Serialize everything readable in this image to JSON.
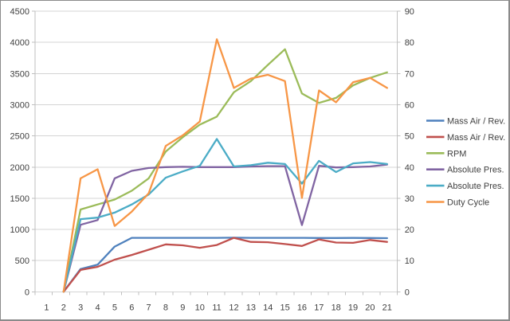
{
  "chart_data": {
    "type": "line",
    "title": "",
    "x_categories": [
      "1",
      "2",
      "3",
      "4",
      "5",
      "6",
      "7",
      "8",
      "9",
      "10",
      "11",
      "12",
      "13",
      "14",
      "15",
      "16",
      "17",
      "18",
      "19",
      "20",
      "21"
    ],
    "left_axis": {
      "min": 0,
      "max": 4500,
      "step": 500,
      "tick_labels": [
        "0",
        "500",
        "1000",
        "1500",
        "2000",
        "2500",
        "3000",
        "3500",
        "4000",
        "4500"
      ]
    },
    "right_axis": {
      "min": 0,
      "max": 90,
      "step": 10,
      "tick_labels": [
        "0",
        "10",
        "20",
        "30",
        "40",
        "50",
        "60",
        "70",
        "80",
        "90"
      ]
    },
    "grid": true,
    "legend_position": "right",
    "series": [
      {
        "id": "mass-air-rev-1",
        "name": "Mass Air / Rev.",
        "color": "#4F81BD",
        "axis": "left",
        "values": [
          null,
          0,
          365,
          435,
          725,
          865,
          865,
          865,
          865,
          865,
          865,
          868,
          865,
          865,
          865,
          865,
          862,
          862,
          864,
          863,
          860
        ]
      },
      {
        "id": "mass-air-rev-2",
        "name": "Mass Air / Rev.",
        "color": "#C0504D",
        "axis": "left",
        "values": [
          null,
          0,
          350,
          400,
          515,
          590,
          675,
          760,
          745,
          705,
          750,
          865,
          800,
          795,
          765,
          735,
          840,
          790,
          785,
          830,
          800
        ]
      },
      {
        "id": "rpm",
        "name": "RPM",
        "color": "#9BBB59",
        "axis": "left",
        "values": [
          null,
          0,
          1320,
          1400,
          1480,
          1620,
          1820,
          2250,
          2480,
          2680,
          2810,
          3200,
          3380,
          3640,
          3890,
          3180,
          3030,
          3110,
          3310,
          3430,
          3520
        ]
      },
      {
        "id": "absolute-pres-1",
        "name": "Absolute Pres.",
        "color": "#8064A2",
        "axis": "right",
        "values": [
          null,
          0,
          21.5,
          23.0,
          36.4,
          38.8,
          39.7,
          40.0,
          40.1,
          40.0,
          40.0,
          40.0,
          40.2,
          40.3,
          40.3,
          21.4,
          40.4,
          39.9,
          40.0,
          40.2,
          40.8
        ]
      },
      {
        "id": "absolute-pres-2",
        "name": "Absolute Pres.",
        "color": "#4BACC6",
        "axis": "right",
        "values": [
          null,
          0,
          23.3,
          23.8,
          25.4,
          28.0,
          31.2,
          36.6,
          38.6,
          40.4,
          49.0,
          40.2,
          40.6,
          41.4,
          41.0,
          34.7,
          42.0,
          38.4,
          41.2,
          41.6,
          41.0
        ]
      },
      {
        "id": "duty-cycle",
        "name": "Duty Cycle",
        "color": "#F79646",
        "axis": "right",
        "values": [
          null,
          0,
          36.4,
          39.3,
          21.1,
          25.7,
          31.6,
          46.8,
          50.2,
          54.6,
          81.0,
          65.4,
          68.4,
          69.6,
          67.6,
          30.1,
          64.6,
          60.8,
          67.2,
          68.6,
          65.4
        ]
      }
    ],
    "legend": [
      "Mass Air / Rev.",
      "Mass Air / Rev.",
      "RPM",
      "Absolute Pres.",
      "Absolute Pres.",
      "Duty Cycle"
    ]
  },
  "style": {
    "gridline_color": "#D4D4D4",
    "axis_line_color": "#BFBFBF",
    "tick_color": "#BFBFBF",
    "text_color": "#404040",
    "background": "#FFFFFF",
    "frame_border": "#8A8A8A"
  }
}
